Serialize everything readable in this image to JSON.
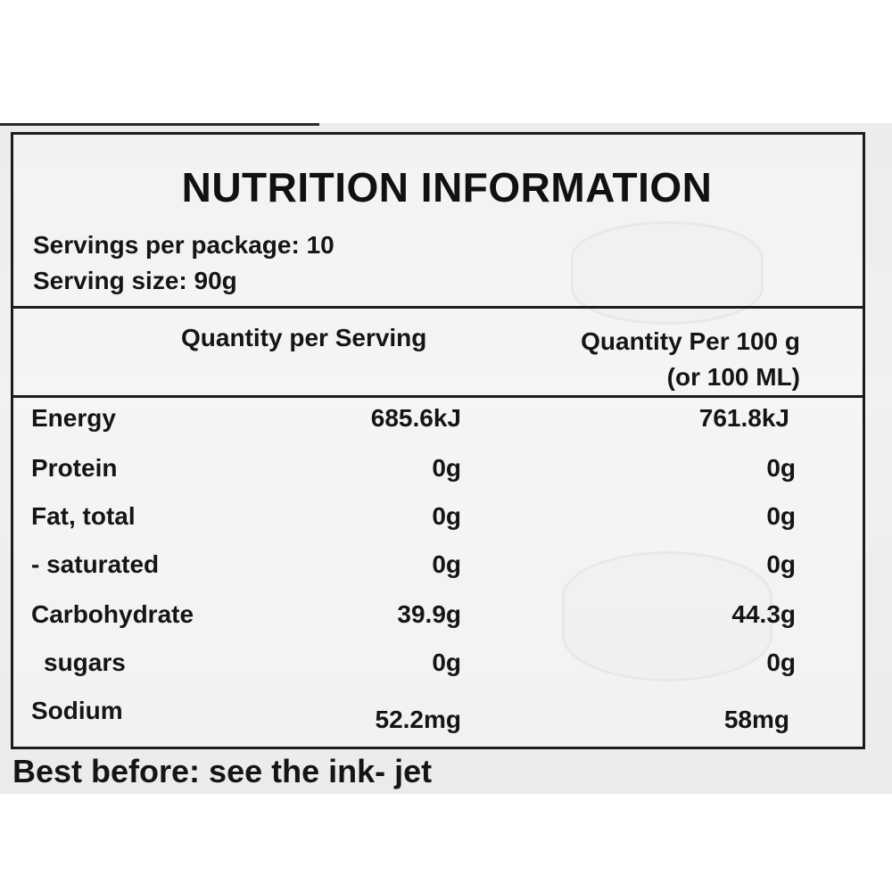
{
  "label": {
    "title": "NUTRITION INFORMATION",
    "servings_per_package": "Servings per package: 10",
    "serving_size": "Serving size: 90g",
    "columns": {
      "per_serving": "Quantity per Serving",
      "per_100_line1": "Quantity Per 100 g",
      "per_100_line2": "(or 100 ML)"
    },
    "rows": [
      {
        "name": "Energy",
        "per_serving": "685.6kJ",
        "per_100": "761.8kJ"
      },
      {
        "name": "Protein",
        "per_serving": "0g",
        "per_100": "0g"
      },
      {
        "name": "Fat, total",
        "per_serving": "0g",
        "per_100": "0g"
      },
      {
        "name": "- saturated",
        "per_serving": "0g",
        "per_100": "0g"
      },
      {
        "name": "Carbohydrate",
        "per_serving": "39.9g",
        "per_100": "44.3g"
      },
      {
        "name": "sugars",
        "per_serving": "0g",
        "per_100": "0g"
      },
      {
        "name": "Sodium",
        "per_serving": "52.2mg",
        "per_100": "58mg"
      }
    ],
    "best_before": "Best before: see the ink- jet"
  },
  "icons": {
    "bowl_illustration": "bowl-illustration-icon"
  },
  "colors": {
    "ink": "#151515",
    "package_background": "#eeeeee",
    "border": "#1c1c1c"
  }
}
